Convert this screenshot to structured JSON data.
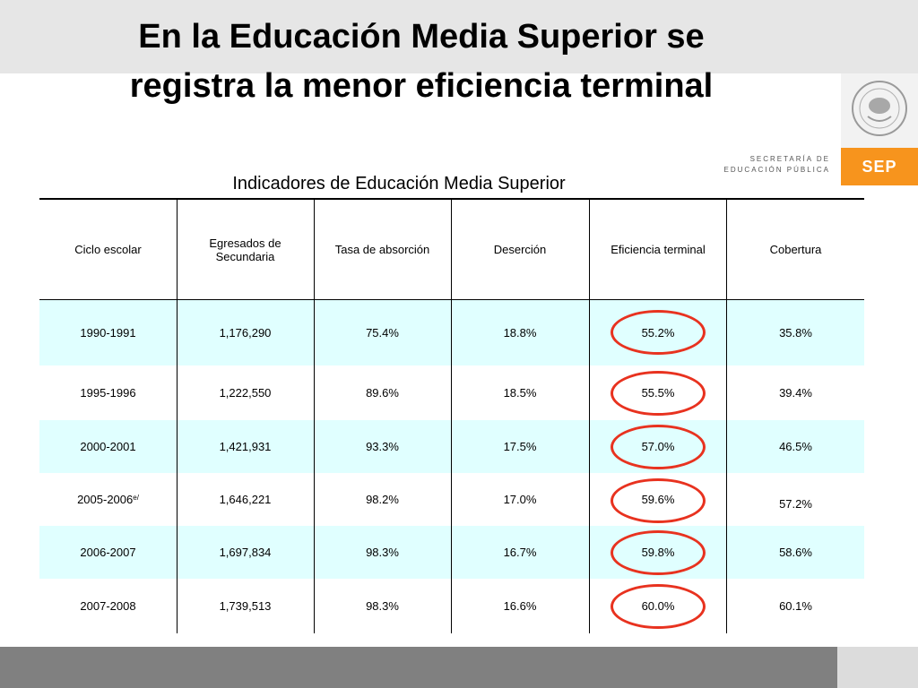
{
  "slide": {
    "title_line1": "En la Educación Media Superior se",
    "title_line2": "registra la menor eficiencia terminal",
    "subtitle": "Indicadores de Educación Media Superior"
  },
  "branding": {
    "secretaria_line1": "SECRETARÍA DE",
    "secretaria_line2": "EDUCACIÓN PÚBLICA",
    "sep_label": "SEP",
    "accent_color": "#f7941d",
    "highlight_color": "#e8321f"
  },
  "table": {
    "headers": [
      "Ciclo escolar",
      "Egresados de Secundaria",
      "Tasa de absorción",
      "Deserción",
      "Eficiencia terminal",
      "Cobertura"
    ],
    "rows": [
      {
        "ciclo": "1990-1991",
        "note": "",
        "egresados": "1,176,290",
        "absorcion": "75.4%",
        "desercion": "18.8%",
        "eficiencia": "55.2%",
        "cobertura": "35.8%"
      },
      {
        "ciclo": "1995-1996",
        "note": "",
        "egresados": "1,222,550",
        "absorcion": "89.6%",
        "desercion": "18.5%",
        "eficiencia": "55.5%",
        "cobertura": "39.4%"
      },
      {
        "ciclo": "2000-2001",
        "note": "",
        "egresados": "1,421,931",
        "absorcion": "93.3%",
        "desercion": "17.5%",
        "eficiencia": "57.0%",
        "cobertura": "46.5%"
      },
      {
        "ciclo": "2005-2006",
        "note": "e/",
        "egresados": "1,646,221",
        "absorcion": "98.2%",
        "desercion": "17.0%",
        "eficiencia": "59.6%",
        "cobertura": "57.2%"
      },
      {
        "ciclo": "2006-2007",
        "note": "",
        "egresados": "1,697,834",
        "absorcion": "98.3%",
        "desercion": "16.7%",
        "eficiencia": "59.8%",
        "cobertura": "58.6%"
      },
      {
        "ciclo": "2007-2008",
        "note": "",
        "egresados": "1,739,513",
        "absorcion": "98.3%",
        "desercion": "16.6%",
        "eficiencia": "60.0%",
        "cobertura": "60.1%"
      }
    ]
  }
}
